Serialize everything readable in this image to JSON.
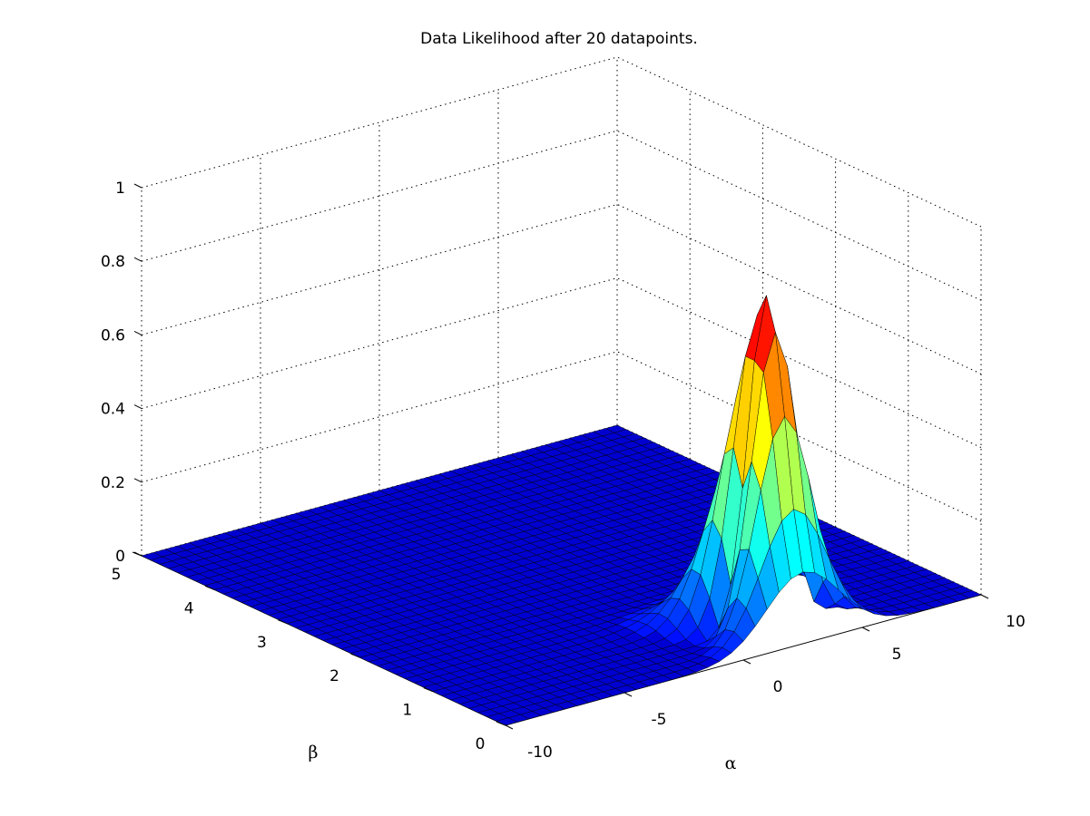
{
  "chart_data": {
    "type": "surface",
    "title": "Data Likelihood after 20 datapoints.",
    "xlabel": "α",
    "ylabel": "β",
    "zlabel": "",
    "xlim": [
      -10,
      10
    ],
    "ylim": [
      0,
      5
    ],
    "zlim": [
      0,
      1
    ],
    "x_ticks": [
      "-10",
      "-5",
      "0",
      "5",
      "10"
    ],
    "y_ticks": [
      "0",
      "1",
      "2",
      "3",
      "4",
      "5"
    ],
    "z_ticks": [
      "0",
      "0.2",
      "0.4",
      "0.6",
      "0.8",
      "1"
    ],
    "colormap": "jet",
    "grid": true,
    "peak": {
      "alpha": 2.5,
      "beta": 0.5,
      "value": 0.9
    },
    "surface_function": "normalized likelihood of alpha and beta after 20 datapoints, sharp peak near alpha=2.5, beta=0.5 with ridge extending toward beta=0",
    "grid_resolution": {
      "alpha_samples": 41,
      "beta_samples": 41
    }
  }
}
